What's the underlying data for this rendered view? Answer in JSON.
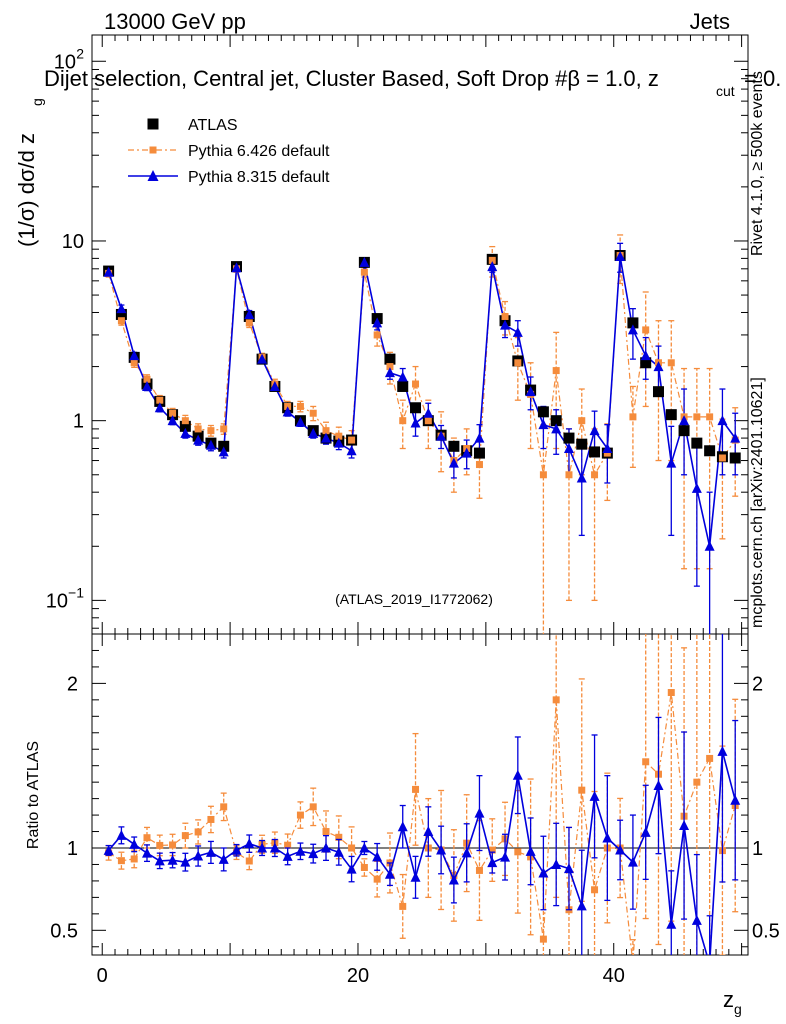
{
  "chart_data": {
    "type": "scatter",
    "title_left": "13000 GeV pp",
    "title_right": "Jets",
    "subtitle": "Dijet selection, Central jet, Cluster Based, Soft Drop #β = 1.0, z",
    "subtitle_sub": "cut",
    "subtitle_end": " = 0.",
    "ylabel": "(1/σ) dσ/d z",
    "ylabel_sub": "g",
    "xlabel": "z",
    "xlabel_sub": "g",
    "ratio_ylabel": "Ratio to ATLAS",
    "watermark": "(ATLAS_2019_I1772062)",
    "side_text_top": "Rivet 4.1.0, ≥ 500k events",
    "side_text_bottom": "mcplots.cern.ch [arXiv:2401.10621]",
    "main_yscale": "log",
    "main_ylim": [
      0.065,
      140
    ],
    "ratio_ylim": [
      0.35,
      2.3
    ],
    "xlim": [
      -0.8,
      50.5
    ],
    "main_yticks": [
      {
        "v": 0.1,
        "b": "10",
        "e": "−1"
      },
      {
        "v": 1,
        "b": "1",
        "e": ""
      },
      {
        "v": 10,
        "b": "10",
        "e": ""
      },
      {
        "v": 100,
        "b": "10",
        "e": "2"
      }
    ],
    "ratio_yticks": [
      {
        "v": 0.5,
        "label": "0.5"
      },
      {
        "v": 1,
        "label": "1"
      },
      {
        "v": 2,
        "label": "2"
      }
    ],
    "xticks": [
      {
        "v": 0,
        "label": "0"
      },
      {
        "v": 20,
        "label": "20"
      },
      {
        "v": 40,
        "label": "40"
      }
    ],
    "legend": [
      {
        "name": "ATLAS",
        "color": "#000000",
        "marker": "square",
        "line": "none"
      },
      {
        "name": "Pythia 6.426 default",
        "color": "#f58c3c",
        "marker": "square",
        "line": "dashdot"
      },
      {
        "name": "Pythia 8.315 default",
        "color": "#0000dd",
        "marker": "triangle",
        "line": "solid"
      }
    ],
    "x": [
      0.5,
      1.5,
      2.5,
      3.5,
      4.5,
      5.5,
      6.5,
      7.5,
      8.5,
      9.5,
      10.5,
      11.5,
      12.5,
      13.5,
      14.5,
      15.5,
      16.5,
      17.5,
      18.5,
      19.5,
      20.5,
      21.5,
      22.5,
      23.5,
      24.5,
      25.5,
      26.5,
      27.5,
      28.5,
      29.5,
      30.5,
      31.5,
      32.5,
      33.5,
      34.5,
      35.5,
      36.5,
      37.5,
      38.5,
      39.5,
      40.5,
      41.5,
      42.5,
      43.5,
      44.5,
      45.5,
      46.5,
      47.5,
      48.5,
      49.5
    ],
    "series": [
      {
        "name": "ATLAS",
        "values": [
          6.8,
          3.9,
          2.25,
          1.6,
          1.28,
          1.08,
          0.93,
          0.82,
          0.75,
          0.72,
          7.2,
          3.8,
          2.2,
          1.55,
          1.18,
          1.0,
          0.88,
          0.8,
          0.77,
          0.78,
          7.6,
          3.7,
          2.2,
          1.55,
          1.18,
          1.0,
          0.83,
          0.72,
          0.68,
          0.66,
          7.9,
          3.6,
          2.15,
          1.48,
          1.12,
          1.0,
          0.8,
          0.74,
          0.67,
          0.66,
          8.3,
          3.5,
          2.1,
          1.45,
          1.08,
          0.88,
          0.75,
          0.68,
          0.63,
          0.62
        ]
      },
      {
        "name": "Pythia 6.426 default",
        "values": [
          6.6,
          3.6,
          2.1,
          1.7,
          1.3,
          1.1,
          1.0,
          0.9,
          0.88,
          0.9,
          7.0,
          3.5,
          2.25,
          1.6,
          1.2,
          1.2,
          1.1,
          0.88,
          0.82,
          0.78,
          6.7,
          3.0,
          2.0,
          1.0,
          1.6,
          1.0,
          0.82,
          0.6,
          0.7,
          0.57,
          7.8,
          3.8,
          2.1,
          1.4,
          0.5,
          1.9,
          0.5,
          1.0,
          0.5,
          0.66,
          8.3,
          1.05,
          3.2,
          2.1,
          2.1,
          1.05,
          1.05,
          1.05,
          0.62,
          0.78
        ],
        "errors": [
          0.3,
          0.2,
          0.12,
          0.1,
          0.08,
          0.07,
          0.07,
          0.06,
          0.06,
          0.06,
          0.3,
          0.2,
          0.12,
          0.1,
          0.08,
          0.08,
          0.1,
          0.1,
          0.1,
          0.1,
          0.4,
          0.4,
          0.4,
          0.3,
          0.4,
          0.3,
          0.3,
          0.2,
          0.2,
          0.2,
          1.5,
          0.8,
          0.8,
          0.7,
          0.45,
          1.2,
          0.4,
          0.5,
          0.4,
          0.3,
          2.5,
          0.5,
          2.0,
          1.5,
          1.5,
          0.9,
          0.9,
          0.9,
          0.4,
          0.4
        ]
      },
      {
        "name": "Pythia 8.315 default",
        "values": [
          6.7,
          4.2,
          2.3,
          1.55,
          1.18,
          1.0,
          0.85,
          0.78,
          0.73,
          0.67,
          7.1,
          3.9,
          2.2,
          1.55,
          1.12,
          0.98,
          0.85,
          0.8,
          0.75,
          0.68,
          7.6,
          3.5,
          1.85,
          1.75,
          0.97,
          1.1,
          0.82,
          0.58,
          0.66,
          0.8,
          7.2,
          3.4,
          3.1,
          1.45,
          0.95,
          0.9,
          0.7,
          0.48,
          0.88,
          0.7,
          8.2,
          3.2,
          2.3,
          2.0,
          0.58,
          1.0,
          0.42,
          0.2,
          1.0,
          0.8
        ],
        "errors": [
          0.2,
          0.2,
          0.1,
          0.08,
          0.06,
          0.05,
          0.05,
          0.05,
          0.05,
          0.05,
          0.25,
          0.2,
          0.1,
          0.08,
          0.06,
          0.05,
          0.05,
          0.06,
          0.06,
          0.06,
          0.3,
          0.3,
          0.15,
          0.2,
          0.15,
          0.15,
          0.12,
          0.1,
          0.12,
          0.15,
          0.5,
          0.5,
          0.5,
          0.3,
          0.25,
          0.25,
          0.2,
          0.25,
          0.25,
          0.25,
          1.5,
          1.0,
          0.6,
          0.6,
          0.35,
          0.5,
          0.3,
          0.2,
          0.5,
          0.3
        ]
      }
    ]
  }
}
